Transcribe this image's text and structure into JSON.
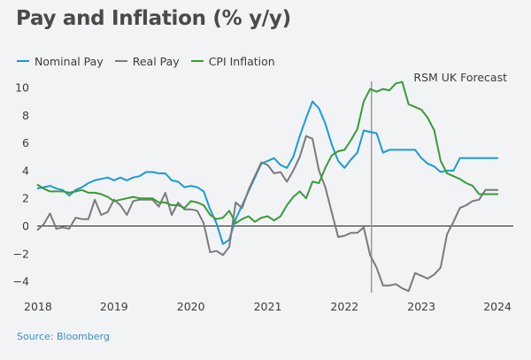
{
  "title": "Pay and Inflation (% y/y)",
  "source": "Source: Bloomberg",
  "chart_data": {
    "type": "line",
    "title": "Pay and Inflation (% y/y)",
    "xlabel": "",
    "ylabel": "",
    "xlim": [
      2018.0,
      2024.0
    ],
    "ylim": [
      -5,
      10.5
    ],
    "x_ticks": [
      "2018",
      "2019",
      "2020",
      "2021",
      "2022",
      "2023",
      "2024"
    ],
    "y_ticks": [
      "10",
      "8",
      "6",
      "4",
      "2",
      "0",
      "−2",
      "−4"
    ],
    "annotation": "RSM UK Forecast",
    "forecast_start": 2022.35,
    "legend_position": "top-left",
    "series": [
      {
        "name": "Nominal Pay",
        "color": "#1a9bd6",
        "points": [
          [
            2018.0,
            2.7
          ],
          [
            2018.083,
            2.8
          ],
          [
            2018.167,
            2.9
          ],
          [
            2018.25,
            2.7
          ],
          [
            2018.333,
            2.6
          ],
          [
            2018.417,
            2.2
          ],
          [
            2018.5,
            2.6
          ],
          [
            2018.583,
            2.8
          ],
          [
            2018.667,
            3.1
          ],
          [
            2018.75,
            3.3
          ],
          [
            2018.833,
            3.4
          ],
          [
            2018.917,
            3.5
          ],
          [
            2019.0,
            3.3
          ],
          [
            2019.083,
            3.5
          ],
          [
            2019.167,
            3.3
          ],
          [
            2019.25,
            3.5
          ],
          [
            2019.333,
            3.6
          ],
          [
            2019.417,
            3.9
          ],
          [
            2019.5,
            3.9
          ],
          [
            2019.583,
            3.8
          ],
          [
            2019.667,
            3.8
          ],
          [
            2019.75,
            3.3
          ],
          [
            2019.833,
            3.2
          ],
          [
            2019.917,
            2.8
          ],
          [
            2020.0,
            2.9
          ],
          [
            2020.083,
            2.8
          ],
          [
            2020.167,
            2.5
          ],
          [
            2020.25,
            1.2
          ],
          [
            2020.333,
            0.2
          ],
          [
            2020.417,
            -1.3
          ],
          [
            2020.5,
            -1.0
          ],
          [
            2020.583,
            0.5
          ],
          [
            2020.667,
            1.5
          ],
          [
            2020.75,
            2.5
          ],
          [
            2020.833,
            3.5
          ],
          [
            2020.917,
            4.5
          ],
          [
            2021.0,
            4.7
          ],
          [
            2021.083,
            4.9
          ],
          [
            2021.167,
            4.4
          ],
          [
            2021.25,
            4.2
          ],
          [
            2021.333,
            5.0
          ],
          [
            2021.417,
            6.5
          ],
          [
            2021.5,
            7.8
          ],
          [
            2021.583,
            9.0
          ],
          [
            2021.667,
            8.5
          ],
          [
            2021.75,
            7.4
          ],
          [
            2021.833,
            5.9
          ],
          [
            2021.917,
            4.7
          ],
          [
            2022.0,
            4.2
          ],
          [
            2022.083,
            4.8
          ],
          [
            2022.167,
            5.3
          ],
          [
            2022.25,
            6.9
          ],
          [
            2022.333,
            6.8
          ],
          [
            2022.417,
            6.7
          ],
          [
            2022.5,
            5.3
          ],
          [
            2022.583,
            5.5
          ],
          [
            2022.667,
            5.5
          ],
          [
            2022.75,
            5.5
          ],
          [
            2022.833,
            5.5
          ],
          [
            2022.917,
            5.5
          ],
          [
            2023.0,
            4.9
          ],
          [
            2023.083,
            4.5
          ],
          [
            2023.167,
            4.3
          ],
          [
            2023.25,
            3.9
          ],
          [
            2023.333,
            4.0
          ],
          [
            2023.417,
            4.0
          ],
          [
            2023.5,
            4.9
          ],
          [
            2023.583,
            4.9
          ],
          [
            2023.667,
            4.9
          ],
          [
            2023.75,
            4.9
          ],
          [
            2023.833,
            4.9
          ],
          [
            2023.917,
            4.9
          ],
          [
            2024.0,
            4.9
          ]
        ]
      },
      {
        "name": "Real Pay",
        "color": "#7a7a7a",
        "points": [
          [
            2018.0,
            -0.3
          ],
          [
            2018.083,
            0.1
          ],
          [
            2018.167,
            0.9
          ],
          [
            2018.25,
            -0.2
          ],
          [
            2018.333,
            -0.1
          ],
          [
            2018.417,
            -0.2
          ],
          [
            2018.5,
            0.6
          ],
          [
            2018.583,
            0.5
          ],
          [
            2018.667,
            0.5
          ],
          [
            2018.75,
            1.9
          ],
          [
            2018.833,
            0.8
          ],
          [
            2018.917,
            1.0
          ],
          [
            2019.0,
            1.9
          ],
          [
            2019.083,
            1.5
          ],
          [
            2019.167,
            0.8
          ],
          [
            2019.25,
            1.8
          ],
          [
            2019.333,
            1.9
          ],
          [
            2019.417,
            1.9
          ],
          [
            2019.5,
            1.9
          ],
          [
            2019.583,
            1.4
          ],
          [
            2019.667,
            2.4
          ],
          [
            2019.75,
            0.8
          ],
          [
            2019.833,
            1.7
          ],
          [
            2019.917,
            1.2
          ],
          [
            2020.0,
            1.2
          ],
          [
            2020.083,
            1.1
          ],
          [
            2020.167,
            0.2
          ],
          [
            2020.25,
            -1.9
          ],
          [
            2020.333,
            -1.8
          ],
          [
            2020.417,
            -2.1
          ],
          [
            2020.5,
            -1.5
          ],
          [
            2020.583,
            1.7
          ],
          [
            2020.667,
            1.3
          ],
          [
            2020.75,
            2.6
          ],
          [
            2020.833,
            3.6
          ],
          [
            2020.917,
            4.6
          ],
          [
            2021.0,
            4.4
          ],
          [
            2021.083,
            3.8
          ],
          [
            2021.167,
            3.9
          ],
          [
            2021.25,
            3.2
          ],
          [
            2021.333,
            4.0
          ],
          [
            2021.417,
            5.0
          ],
          [
            2021.5,
            6.5
          ],
          [
            2021.583,
            6.3
          ],
          [
            2021.667,
            4.0
          ],
          [
            2021.75,
            2.8
          ],
          [
            2021.833,
            1.0
          ],
          [
            2021.917,
            -0.8
          ],
          [
            2022.0,
            -0.7
          ],
          [
            2022.083,
            -0.5
          ],
          [
            2022.167,
            -0.5
          ],
          [
            2022.25,
            -0.1
          ],
          [
            2022.333,
            -2.1
          ],
          [
            2022.417,
            -3.0
          ],
          [
            2022.5,
            -4.3
          ],
          [
            2022.583,
            -4.3
          ],
          [
            2022.667,
            -4.2
          ],
          [
            2022.75,
            -4.5
          ],
          [
            2022.833,
            -4.7
          ],
          [
            2022.917,
            -3.4
          ],
          [
            2023.0,
            -3.6
          ],
          [
            2023.083,
            -3.8
          ],
          [
            2023.167,
            -3.5
          ],
          [
            2023.25,
            -3.0
          ],
          [
            2023.333,
            -0.6
          ],
          [
            2023.417,
            0.3
          ],
          [
            2023.5,
            1.3
          ],
          [
            2023.583,
            1.5
          ],
          [
            2023.667,
            1.8
          ],
          [
            2023.75,
            1.9
          ],
          [
            2023.833,
            2.6
          ],
          [
            2023.917,
            2.6
          ],
          [
            2024.0,
            2.6
          ]
        ]
      },
      {
        "name": "CPI Inflation",
        "color": "#3a9a3a",
        "points": [
          [
            2018.0,
            3.0
          ],
          [
            2018.083,
            2.7
          ],
          [
            2018.167,
            2.5
          ],
          [
            2018.25,
            2.5
          ],
          [
            2018.333,
            2.5
          ],
          [
            2018.417,
            2.4
          ],
          [
            2018.5,
            2.5
          ],
          [
            2018.583,
            2.6
          ],
          [
            2018.667,
            2.4
          ],
          [
            2018.75,
            2.4
          ],
          [
            2018.833,
            2.3
          ],
          [
            2018.917,
            2.1
          ],
          [
            2019.0,
            1.8
          ],
          [
            2019.083,
            1.9
          ],
          [
            2019.167,
            2.0
          ],
          [
            2019.25,
            2.1
          ],
          [
            2019.333,
            2.0
          ],
          [
            2019.417,
            2.0
          ],
          [
            2019.5,
            2.0
          ],
          [
            2019.583,
            1.7
          ],
          [
            2019.667,
            1.7
          ],
          [
            2019.75,
            1.5
          ],
          [
            2019.833,
            1.5
          ],
          [
            2019.917,
            1.3
          ],
          [
            2020.0,
            1.8
          ],
          [
            2020.083,
            1.7
          ],
          [
            2020.167,
            1.5
          ],
          [
            2020.25,
            0.8
          ],
          [
            2020.333,
            0.5
          ],
          [
            2020.417,
            0.6
          ],
          [
            2020.5,
            1.1
          ],
          [
            2020.583,
            0.2
          ],
          [
            2020.667,
            0.5
          ],
          [
            2020.75,
            0.7
          ],
          [
            2020.833,
            0.3
          ],
          [
            2020.917,
            0.6
          ],
          [
            2021.0,
            0.7
          ],
          [
            2021.083,
            0.4
          ],
          [
            2021.167,
            0.7
          ],
          [
            2021.25,
            1.5
          ],
          [
            2021.333,
            2.1
          ],
          [
            2021.417,
            2.5
          ],
          [
            2021.5,
            2.0
          ],
          [
            2021.583,
            3.2
          ],
          [
            2021.667,
            3.1
          ],
          [
            2021.75,
            4.2
          ],
          [
            2021.833,
            5.1
          ],
          [
            2021.917,
            5.4
          ],
          [
            2022.0,
            5.5
          ],
          [
            2022.083,
            6.2
          ],
          [
            2022.167,
            7.0
          ],
          [
            2022.25,
            9.0
          ],
          [
            2022.333,
            9.9
          ],
          [
            2022.417,
            9.7
          ],
          [
            2022.5,
            9.9
          ],
          [
            2022.583,
            9.8
          ],
          [
            2022.667,
            10.3
          ],
          [
            2022.75,
            10.4
          ],
          [
            2022.833,
            8.8
          ],
          [
            2022.917,
            8.6
          ],
          [
            2023.0,
            8.4
          ],
          [
            2023.083,
            7.8
          ],
          [
            2023.167,
            6.9
          ],
          [
            2023.25,
            4.7
          ],
          [
            2023.333,
            3.8
          ],
          [
            2023.417,
            3.6
          ],
          [
            2023.5,
            3.4
          ],
          [
            2023.583,
            3.1
          ],
          [
            2023.667,
            2.9
          ],
          [
            2023.75,
            2.3
          ],
          [
            2023.833,
            2.3
          ],
          [
            2023.917,
            2.3
          ],
          [
            2024.0,
            2.3
          ]
        ]
      }
    ]
  }
}
